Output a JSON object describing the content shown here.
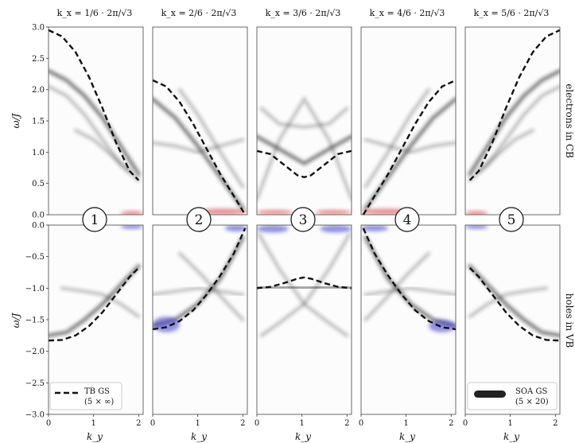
{
  "chart_data": {
    "type": "line",
    "column_titles": [
      "k_x = 1/6 · 2π/√3",
      "k_x = 2/6 · 2π/√3",
      "k_x = 3/6 · 2π/√3",
      "k_x = 4/6 · 2π/√3",
      "k_x = 5/6 · 2π/√3"
    ],
    "row_labels": [
      "electrons in CB",
      "holes in VB"
    ],
    "ylabel": "ω/J",
    "xlabel": "k_y",
    "xlim": [
      0,
      2.1
    ],
    "ylim_top": [
      0,
      3.0
    ],
    "ylim_bottom": [
      -3.0,
      0
    ],
    "xticks": [
      "0",
      "1",
      "2"
    ],
    "yticks_top": [
      "0.0",
      "0.5",
      "1.0",
      "1.5",
      "2.0",
      "2.5",
      "3.0"
    ],
    "yticks_bottom": [
      "0.0",
      "−0.5",
      "−1.0",
      "−1.5",
      "−2.0",
      "−2.5",
      "−3.0"
    ],
    "panel_markers": [
      "1",
      "2",
      "3",
      "4",
      "5"
    ],
    "legend": {
      "tb_label": "TB GS",
      "tb_sub": "(5 × ∞)",
      "soa_label": "SOA GS",
      "soa_sub": "(5 × 20)"
    },
    "colors": {
      "tb_line": "#111111",
      "spectral": "#2a2a2a",
      "electron_overlap": "#d94040",
      "hole_overlap": "#3a3acc"
    },
    "series": [
      {
        "name": "TB GS",
        "upper": [
          [
            [
              0,
              2.95
            ],
            [
              0.3,
              2.85
            ],
            [
              0.6,
              2.6
            ],
            [
              0.9,
              2.2
            ],
            [
              1.2,
              1.7
            ],
            [
              1.5,
              1.15
            ],
            [
              1.8,
              0.7
            ],
            [
              2.0,
              0.55
            ]
          ],
          [
            [
              0,
              2.15
            ],
            [
              0.3,
              2.05
            ],
            [
              0.6,
              1.8
            ],
            [
              0.9,
              1.45
            ],
            [
              1.2,
              1.05
            ],
            [
              1.5,
              0.65
            ],
            [
              1.8,
              0.3
            ],
            [
              2.05,
              0.0
            ]
          ],
          [
            [
              0,
              1.02
            ],
            [
              0.3,
              0.97
            ],
            [
              0.6,
              0.8
            ],
            [
              0.9,
              0.63
            ],
            [
              1.05,
              0.6
            ],
            [
              1.2,
              0.63
            ],
            [
              1.5,
              0.8
            ],
            [
              1.8,
              0.97
            ],
            [
              2.1,
              1.02
            ]
          ],
          [
            [
              0.05,
              0.0
            ],
            [
              0.3,
              0.3
            ],
            [
              0.6,
              0.65
            ],
            [
              0.9,
              1.05
            ],
            [
              1.2,
              1.45
            ],
            [
              1.5,
              1.8
            ],
            [
              1.8,
              2.05
            ],
            [
              2.1,
              2.15
            ]
          ],
          [
            [
              0.1,
              0.55
            ],
            [
              0.3,
              0.7
            ],
            [
              0.6,
              1.15
            ],
            [
              0.9,
              1.7
            ],
            [
              1.2,
              2.2
            ],
            [
              1.5,
              2.6
            ],
            [
              1.8,
              2.85
            ],
            [
              2.1,
              2.95
            ]
          ]
        ],
        "lower": [
          [
            [
              0,
              -1.83
            ],
            [
              0.3,
              -1.82
            ],
            [
              0.6,
              -1.75
            ],
            [
              0.9,
              -1.6
            ],
            [
              1.2,
              -1.38
            ],
            [
              1.5,
              -1.1
            ],
            [
              1.8,
              -0.82
            ],
            [
              2.0,
              -0.68
            ]
          ],
          [
            [
              0,
              -1.65
            ],
            [
              0.3,
              -1.62
            ],
            [
              0.6,
              -1.52
            ],
            [
              0.9,
              -1.35
            ],
            [
              1.2,
              -1.1
            ],
            [
              1.5,
              -0.8
            ],
            [
              1.8,
              -0.45
            ],
            [
              2.05,
              -0.05
            ]
          ],
          [
            [
              0,
              -1.0
            ],
            [
              0.3,
              -0.98
            ],
            [
              0.6,
              -0.92
            ],
            [
              0.9,
              -0.85
            ],
            [
              1.05,
              -0.83
            ],
            [
              1.2,
              -0.85
            ],
            [
              1.5,
              -0.92
            ],
            [
              1.8,
              -0.98
            ],
            [
              2.1,
              -1.0
            ]
          ],
          [
            [
              0.05,
              -0.05
            ],
            [
              0.3,
              -0.45
            ],
            [
              0.6,
              -0.8
            ],
            [
              0.9,
              -1.1
            ],
            [
              1.2,
              -1.35
            ],
            [
              1.5,
              -1.52
            ],
            [
              1.8,
              -1.62
            ],
            [
              2.1,
              -1.65
            ]
          ],
          [
            [
              0.1,
              -0.68
            ],
            [
              0.3,
              -0.82
            ],
            [
              0.6,
              -1.1
            ],
            [
              0.9,
              -1.38
            ],
            [
              1.2,
              -1.6
            ],
            [
              1.5,
              -1.75
            ],
            [
              1.8,
              -1.82
            ],
            [
              2.1,
              -1.83
            ]
          ]
        ]
      }
    ],
    "spectral_bands": {
      "upper": [
        [
          [
            [
              0,
              2.3
            ],
            [
              0.4,
              2.15
            ],
            [
              0.8,
              1.9
            ],
            [
              1.2,
              1.55
            ],
            [
              1.6,
              1.1
            ],
            [
              2.0,
              0.65
            ]
          ],
          [
            [
              0,
              2.05
            ],
            [
              0.4,
              1.9
            ],
            [
              0.8,
              1.6
            ],
            [
              1.2,
              1.2
            ],
            [
              1.6,
              0.8
            ],
            [
              2.0,
              0.55
            ]
          ],
          [
            [
              0.6,
              1.35
            ],
            [
              1.0,
              1.2
            ],
            [
              1.4,
              0.95
            ],
            [
              1.8,
              0.7
            ]
          ]
        ],
        [
          [
            [
              0,
              1.85
            ],
            [
              0.5,
              1.55
            ],
            [
              1.0,
              1.1
            ],
            [
              1.5,
              0.6
            ],
            [
              2.0,
              0.1
            ]
          ],
          [
            [
              0,
              1.15
            ],
            [
              0.5,
              1.1
            ],
            [
              1.0,
              1.0
            ],
            [
              1.5,
              1.1
            ],
            [
              2.0,
              1.2
            ]
          ],
          [
            [
              0.6,
              2.0
            ],
            [
              1.0,
              1.6
            ],
            [
              1.5,
              1.0
            ],
            [
              2.0,
              0.45
            ]
          ]
        ],
        [
          [
            [
              0,
              1.25
            ],
            [
              0.5,
              1.05
            ],
            [
              1.05,
              0.82
            ],
            [
              1.6,
              1.05
            ],
            [
              2.1,
              1.25
            ]
          ],
          [
            [
              0,
              0.25
            ],
            [
              0.5,
              1.2
            ],
            [
              1.05,
              1.85
            ],
            [
              1.6,
              1.2
            ],
            [
              2.1,
              0.25
            ]
          ],
          [
            [
              0.1,
              1.7
            ],
            [
              0.5,
              1.45
            ],
            [
              1.05,
              1.4
            ],
            [
              1.6,
              1.45
            ],
            [
              2.0,
              1.7
            ]
          ]
        ],
        [
          [
            [
              0.1,
              0.1
            ],
            [
              0.6,
              0.6
            ],
            [
              1.1,
              1.1
            ],
            [
              1.6,
              1.55
            ],
            [
              2.1,
              1.85
            ]
          ],
          [
            [
              0.1,
              1.2
            ],
            [
              0.6,
              1.1
            ],
            [
              1.1,
              1.0
            ],
            [
              1.6,
              1.1
            ],
            [
              2.1,
              1.15
            ]
          ],
          [
            [
              0.1,
              0.45
            ],
            [
              0.6,
              1.0
            ],
            [
              1.1,
              1.6
            ],
            [
              1.5,
              2.0
            ]
          ]
        ],
        [
          [
            [
              0.1,
              0.65
            ],
            [
              0.5,
              1.1
            ],
            [
              0.9,
              1.55
            ],
            [
              1.3,
              1.9
            ],
            [
              1.7,
              2.15
            ],
            [
              2.1,
              2.3
            ]
          ],
          [
            [
              0.1,
              0.55
            ],
            [
              0.5,
              0.8
            ],
            [
              0.9,
              1.2
            ],
            [
              1.3,
              1.6
            ],
            [
              1.7,
              1.9
            ],
            [
              2.1,
              2.05
            ]
          ],
          [
            [
              0.3,
              0.7
            ],
            [
              0.7,
              0.95
            ],
            [
              1.1,
              1.2
            ],
            [
              1.5,
              1.35
            ]
          ]
        ]
      ],
      "lower": [
        [
          [
            [
              0,
              -1.75
            ],
            [
              0.4,
              -1.7
            ],
            [
              0.8,
              -1.5
            ],
            [
              1.2,
              -1.25
            ],
            [
              1.6,
              -0.95
            ],
            [
              2.0,
              -0.65
            ]
          ],
          [
            [
              0.3,
              -1.0
            ],
            [
              0.8,
              -1.05
            ],
            [
              1.2,
              -1.1
            ],
            [
              1.6,
              -1.25
            ],
            [
              2.0,
              -1.45
            ]
          ]
        ],
        [
          [
            [
              0,
              -1.6
            ],
            [
              0.5,
              -1.5
            ],
            [
              1.0,
              -1.25
            ],
            [
              1.5,
              -0.85
            ],
            [
              2.0,
              -0.2
            ]
          ],
          [
            [
              0,
              -1.1
            ],
            [
              0.5,
              -1.05
            ],
            [
              1.0,
              -1.0
            ],
            [
              1.5,
              -1.05
            ],
            [
              2.0,
              -1.1
            ]
          ],
          [
            [
              0.6,
              -0.45
            ],
            [
              1.1,
              -0.8
            ],
            [
              1.6,
              -1.2
            ],
            [
              2.0,
              -1.5
            ]
          ]
        ],
        [
          [
            [
              0,
              -1.0
            ],
            [
              0.5,
              -0.98
            ],
            [
              1.05,
              -1.0
            ],
            [
              1.6,
              -0.98
            ],
            [
              2.1,
              -1.0
            ]
          ],
          [
            [
              0.05,
              -0.15
            ],
            [
              0.5,
              -0.7
            ],
            [
              1.05,
              -1.25
            ],
            [
              1.6,
              -1.55
            ],
            [
              2.0,
              -1.75
            ]
          ],
          [
            [
              0.1,
              -1.75
            ],
            [
              0.5,
              -1.55
            ],
            [
              1.05,
              -1.25
            ],
            [
              1.6,
              -0.7
            ],
            [
              2.05,
              -0.15
            ]
          ]
        ],
        [
          [
            [
              0.1,
              -0.2
            ],
            [
              0.6,
              -0.85
            ],
            [
              1.1,
              -1.25
            ],
            [
              1.6,
              -1.5
            ],
            [
              2.1,
              -1.6
            ]
          ],
          [
            [
              0.1,
              -1.1
            ],
            [
              0.6,
              -1.05
            ],
            [
              1.1,
              -1.0
            ],
            [
              1.6,
              -1.05
            ],
            [
              2.1,
              -1.1
            ]
          ],
          [
            [
              0.1,
              -1.5
            ],
            [
              0.5,
              -1.2
            ],
            [
              1.0,
              -0.8
            ],
            [
              1.5,
              -0.45
            ]
          ]
        ],
        [
          [
            [
              0.1,
              -0.65
            ],
            [
              0.5,
              -0.95
            ],
            [
              0.9,
              -1.25
            ],
            [
              1.3,
              -1.5
            ],
            [
              1.7,
              -1.7
            ],
            [
              2.1,
              -1.75
            ]
          ],
          [
            [
              0.1,
              -1.45
            ],
            [
              0.5,
              -1.25
            ],
            [
              0.9,
              -1.1
            ],
            [
              1.3,
              -1.05
            ],
            [
              1.8,
              -1.0
            ]
          ]
        ]
      ]
    },
    "overlaps": {
      "upper": [
        [
          [
            1.6,
            2.1,
            0.0,
            0.05
          ]
        ],
        [
          [
            1.0,
            2.1,
            0.0,
            0.1
          ]
        ],
        [
          [
            0.0,
            0.8,
            0.0,
            0.08
          ],
          [
            1.3,
            2.1,
            0.0,
            0.08
          ]
        ],
        [
          [
            0.0,
            1.1,
            0.0,
            0.1
          ]
        ],
        [
          [
            0.0,
            0.5,
            0.0,
            0.05
          ]
        ]
      ],
      "lower": [
        [
          [
            1.6,
            2.1,
            -0.05,
            0.0
          ]
        ],
        [
          [
            0.0,
            0.6,
            -1.7,
            -1.45
          ],
          [
            1.6,
            2.1,
            -0.1,
            0.0
          ]
        ],
        [
          [
            0.0,
            0.7,
            -0.12,
            0.0
          ],
          [
            1.4,
            2.1,
            -0.12,
            0.0
          ]
        ],
        [
          [
            0.0,
            0.6,
            -0.1,
            0.0
          ],
          [
            1.5,
            2.1,
            -1.7,
            -1.5
          ]
        ],
        [
          [
            0.0,
            0.5,
            -0.05,
            0.0
          ]
        ]
      ]
    }
  }
}
